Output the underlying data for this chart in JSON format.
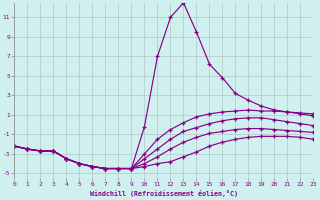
{
  "xlabel": "Windchill (Refroidissement éolien,°C)",
  "bg_color": "#cff0ee",
  "grid_color": "#b0c8c8",
  "line_color": "#880088",
  "xlim": [
    0,
    23
  ],
  "ylim": [
    -5.5,
    12.5
  ],
  "xticks": [
    0,
    1,
    2,
    3,
    4,
    5,
    6,
    7,
    8,
    9,
    10,
    11,
    12,
    13,
    14,
    15,
    16,
    17,
    18,
    19,
    20,
    21,
    22,
    23
  ],
  "yticks": [
    -5,
    -3,
    -1,
    1,
    3,
    5,
    7,
    9,
    11
  ],
  "curve_spike": [
    -2.2,
    -2.5,
    -2.7,
    -2.7,
    -3.5,
    -4.0,
    -4.3,
    -4.5,
    -4.5,
    -4.5,
    -0.2,
    7.0,
    11.0,
    12.5,
    9.5,
    6.2,
    4.8,
    3.2,
    2.5,
    1.9,
    1.5,
    1.3,
    1.2,
    1.1
  ],
  "curve_upper": [
    -2.2,
    -2.5,
    -2.7,
    -2.7,
    -3.5,
    -4.0,
    -4.3,
    -4.5,
    -4.5,
    -4.5,
    -3.0,
    -1.5,
    -0.5,
    0.2,
    0.8,
    1.1,
    1.3,
    1.4,
    1.5,
    1.4,
    1.4,
    1.3,
    1.1,
    0.9
  ],
  "curve_mid1": [
    -2.2,
    -2.5,
    -2.7,
    -2.7,
    -3.5,
    -4.0,
    -4.3,
    -4.5,
    -4.5,
    -4.5,
    -3.5,
    -2.5,
    -1.5,
    -0.7,
    -0.3,
    0.1,
    0.4,
    0.6,
    0.7,
    0.7,
    0.5,
    0.3,
    0.1,
    -0.1
  ],
  "curve_mid2": [
    -2.2,
    -2.5,
    -2.7,
    -2.7,
    -3.5,
    -4.0,
    -4.3,
    -4.5,
    -4.5,
    -4.5,
    -4.0,
    -3.3,
    -2.5,
    -1.8,
    -1.3,
    -0.9,
    -0.7,
    -0.5,
    -0.4,
    -0.4,
    -0.5,
    -0.6,
    -0.7,
    -0.8
  ],
  "curve_lowest": [
    -2.2,
    -2.5,
    -2.7,
    -2.7,
    -3.5,
    -4.0,
    -4.3,
    -4.5,
    -4.5,
    -4.5,
    -4.3,
    -4.0,
    -3.8,
    -3.3,
    -2.8,
    -2.2,
    -1.8,
    -1.5,
    -1.3,
    -1.2,
    -1.2,
    -1.2,
    -1.3,
    -1.5
  ]
}
